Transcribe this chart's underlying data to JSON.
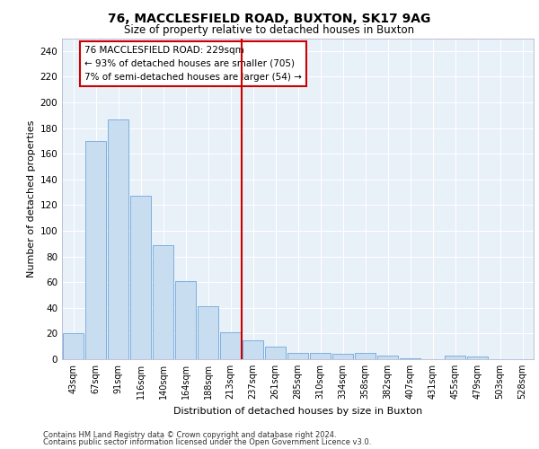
{
  "title1": "76, MACCLESFIELD ROAD, BUXTON, SK17 9AG",
  "title2": "Size of property relative to detached houses in Buxton",
  "xlabel": "Distribution of detached houses by size in Buxton",
  "ylabel": "Number of detached properties",
  "categories": [
    "43sqm",
    "67sqm",
    "91sqm",
    "116sqm",
    "140sqm",
    "164sqm",
    "188sqm",
    "213sqm",
    "237sqm",
    "261sqm",
    "285sqm",
    "310sqm",
    "334sqm",
    "358sqm",
    "382sqm",
    "407sqm",
    "431sqm",
    "455sqm",
    "479sqm",
    "503sqm",
    "528sqm"
  ],
  "values": [
    20,
    170,
    187,
    127,
    89,
    61,
    41,
    21,
    15,
    10,
    5,
    5,
    4,
    5,
    3,
    1,
    0,
    3,
    2,
    0,
    0
  ],
  "bar_color": "#c8ddf0",
  "bar_edge_color": "#5b9bd5",
  "vline_color": "#cc0000",
  "annotation_text": "76 MACCLESFIELD ROAD: 229sqm\n← 93% of detached houses are smaller (705)\n7% of semi-detached houses are larger (54) →",
  "annotation_box_facecolor": "#ffffff",
  "annotation_box_edgecolor": "#cc0000",
  "background_color": "#e8f0f8",
  "grid_color": "#ffffff",
  "footnote1": "Contains HM Land Registry data © Crown copyright and database right 2024.",
  "footnote2": "Contains public sector information licensed under the Open Government Licence v3.0.",
  "ylim": [
    0,
    250
  ],
  "yticks": [
    0,
    20,
    40,
    60,
    80,
    100,
    120,
    140,
    160,
    180,
    200,
    220,
    240
  ]
}
